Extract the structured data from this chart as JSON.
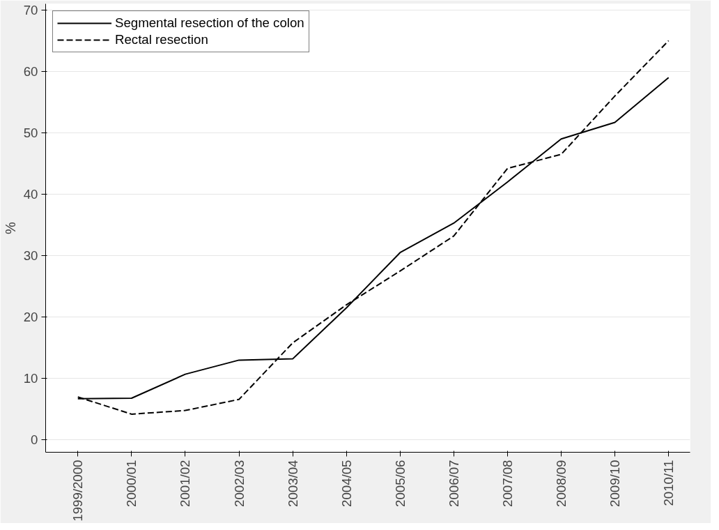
{
  "chart_data": {
    "type": "line",
    "ylabel": "%",
    "categories": [
      "1999/2000",
      "2000/01",
      "2001/02",
      "2002/03",
      "2003/04",
      "2004/05",
      "2005/06",
      "2006/07",
      "2007/08",
      "2008/09",
      "2009/10",
      "2010/11"
    ],
    "series": [
      {
        "name": "Segmental resection of the colon",
        "color": "#000000",
        "line_style": "solid",
        "values": [
          6.7,
          6.8,
          10.7,
          13.0,
          13.2,
          21.5,
          30.5,
          35.3,
          42.0,
          49.0,
          51.7,
          59.0
        ]
      },
      {
        "name": "Rectal resection",
        "color": "#000000",
        "line_style": "dashed",
        "values": [
          7.0,
          4.2,
          4.8,
          6.6,
          15.8,
          22.0,
          27.5,
          33.2,
          44.2,
          46.5,
          56.0,
          65.0
        ]
      }
    ],
    "ylim": [
      -2,
      71
    ],
    "yticks": [
      0,
      10,
      20,
      30,
      40,
      50,
      60,
      70
    ],
    "grid": "y",
    "legend": "top left"
  }
}
